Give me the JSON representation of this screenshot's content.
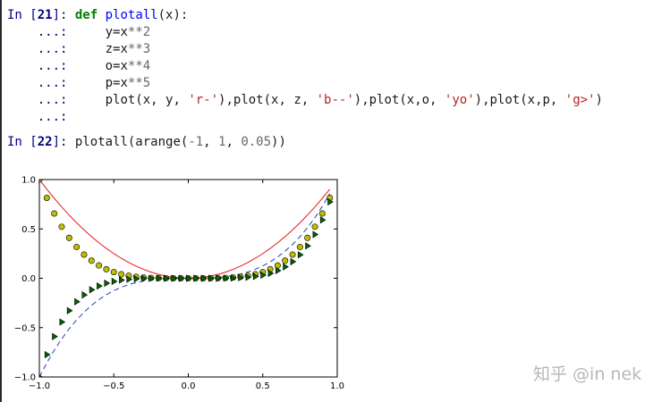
{
  "cell1": {
    "prompt_in": "In [",
    "prompt_num": "21",
    "prompt_close": "]: ",
    "continuation": "...:",
    "kw_def": "def",
    "fn_name": "plotall",
    "signature": "(x):",
    "lines": [
      {
        "var": "y=x",
        "op": "**",
        "lit": "2"
      },
      {
        "var": "z=x",
        "op": "**",
        "lit": "3"
      },
      {
        "var": "o=x",
        "op": "**",
        "lit": "4"
      },
      {
        "var": "p=x",
        "op": "**",
        "lit": "5"
      }
    ],
    "plot_line": {
      "p1": "plot(x, y, ",
      "s1": "'r-'",
      "p2": "),plot(x, z, ",
      "s2": "'b--'",
      "p3": "),plot(x,o, ",
      "s3": "'yo'",
      "p4": "),plot(x,p, ",
      "s4": "'g>'",
      "p5": ")"
    }
  },
  "cell2": {
    "prompt_in": "In [",
    "prompt_num": "22",
    "prompt_close": "]: ",
    "code_a": "plotall(arange(",
    "lit_a": "-1",
    "code_b": ", ",
    "lit_b": "1",
    "code_c": ", ",
    "lit_c": "0.05",
    "code_d": "))"
  },
  "chart_data": {
    "type": "line",
    "x": {
      "start": -1,
      "stop": 1,
      "step": 0.05
    },
    "series": [
      {
        "formula": "x**2",
        "style": "r-",
        "color": "#e41a1c",
        "marker": "none"
      },
      {
        "formula": "x**3",
        "style": "b--",
        "color": "#1f3fbf",
        "marker": "none"
      },
      {
        "formula": "x**4",
        "style": "yo",
        "color": "#bfbf00",
        "marker": "circle"
      },
      {
        "formula": "x**5",
        "style": "g>",
        "color": "#006400",
        "marker": "triangle-right"
      }
    ],
    "xlim": [
      -1.0,
      1.0
    ],
    "ylim": [
      -1.0,
      1.0
    ],
    "xticks": [
      {
        "value": -1.0,
        "label": "−1.0"
      },
      {
        "value": -0.5,
        "label": "−0.5"
      },
      {
        "value": 0.0,
        "label": "0.0"
      },
      {
        "value": 0.5,
        "label": "0.5"
      },
      {
        "value": 1.0,
        "label": "1.0"
      }
    ],
    "yticks": [
      {
        "value": 1.0,
        "label": "1.0"
      },
      {
        "value": 0.5,
        "label": "0.5"
      },
      {
        "value": 0.0,
        "label": "0.0"
      },
      {
        "value": -0.5,
        "label": "−0.5"
      },
      {
        "value": -1.0,
        "label": "−1.0"
      }
    ],
    "grid": false,
    "title": "",
    "xlabel": "",
    "ylabel": ""
  },
  "watermark": "知乎 @in nek"
}
